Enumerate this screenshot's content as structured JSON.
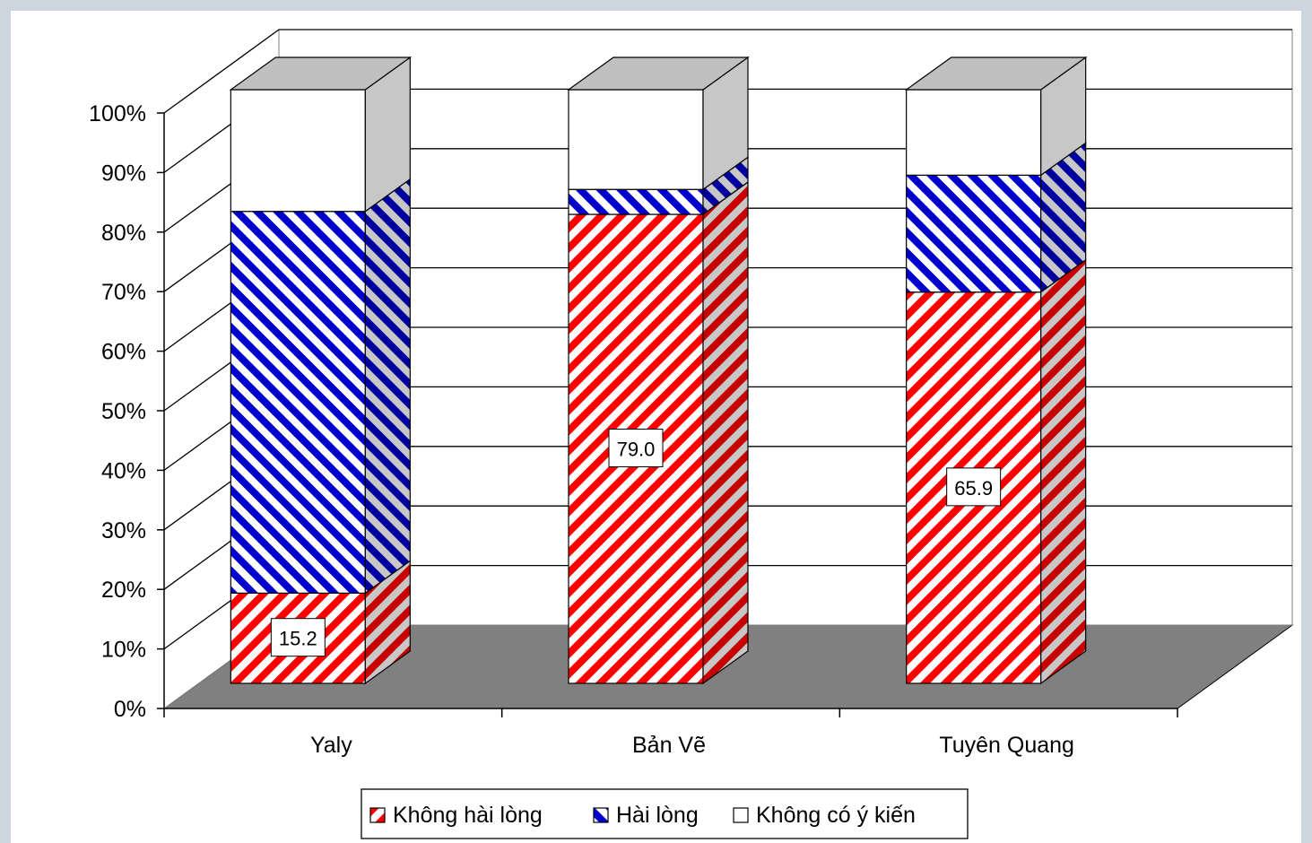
{
  "chart_data": {
    "type": "bar",
    "stacked": "percent",
    "three_d": true,
    "categories": [
      "Yaly",
      "Bản Vẽ",
      "Tuyên Quang"
    ],
    "series": [
      {
        "name": "Không hài lòng",
        "values": [
          15.2,
          79.0,
          65.9
        ],
        "color": "#ff0000",
        "pattern": "diagonal-stripes"
      },
      {
        "name": "Hài lòng",
        "values": [
          64.3,
          4.2,
          19.7
        ],
        "color": "#0000cc",
        "pattern": "diagonal-stripes"
      },
      {
        "name": "Không có ý kiến",
        "values": [
          20.5,
          16.8,
          14.4
        ],
        "color": "#ffffff",
        "pattern": "solid"
      }
    ],
    "data_labels": [
      "15.2",
      "79.0",
      "65.9"
    ],
    "y_ticks": [
      "0%",
      "10%",
      "20%",
      "30%",
      "40%",
      "50%",
      "60%",
      "70%",
      "80%",
      "90%",
      "100%"
    ],
    "ylim": [
      0,
      100
    ],
    "grid": true,
    "legend_position": "bottom",
    "floor_color": "#808080",
    "top_face_color": "#c0c0c0",
    "side_face_color": "#808080"
  }
}
